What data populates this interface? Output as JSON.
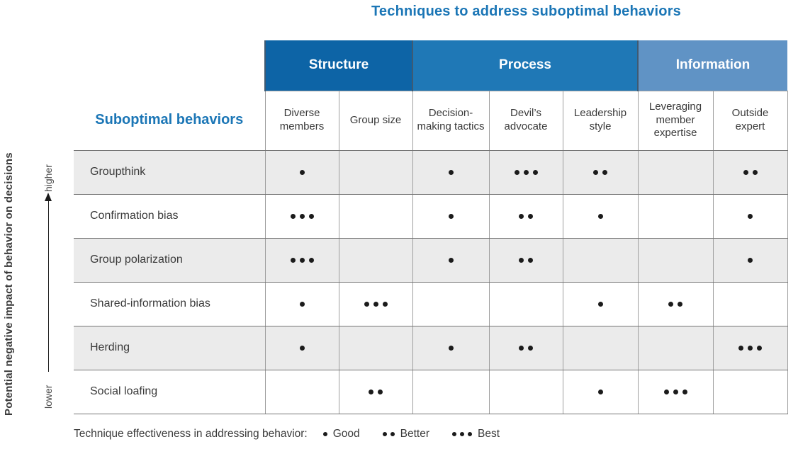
{
  "title": "Techniques to address suboptimal behaviors",
  "row_header": "Suboptimal behaviors",
  "y_axis": {
    "title": "Potential negative impact of behavior on decisions",
    "top_label": "higher",
    "bottom_label": "lower"
  },
  "groups": [
    {
      "label": "Structure",
      "span": 2,
      "color": "#0d64a6"
    },
    {
      "label": "Process",
      "span": 3,
      "color": "#1f78b6"
    },
    {
      "label": "Information",
      "span": 2,
      "color": "#6093c5"
    }
  ],
  "columns": [
    "Diverse members",
    "Group size",
    "Decision-making tactics",
    "Devil’s advocate",
    "Leadership style",
    "Leveraging member expertise",
    "Outside expert"
  ],
  "rows": [
    {
      "label": "Groupthink",
      "values": [
        1,
        0,
        1,
        3,
        2,
        0,
        2
      ]
    },
    {
      "label": "Confirmation bias",
      "values": [
        3,
        0,
        1,
        2,
        1,
        0,
        1
      ]
    },
    {
      "label": "Group polarization",
      "values": [
        3,
        0,
        1,
        2,
        0,
        0,
        1
      ]
    },
    {
      "label": "Shared-information bias",
      "values": [
        1,
        3,
        0,
        0,
        1,
        2,
        0
      ]
    },
    {
      "label": "Herding",
      "values": [
        1,
        0,
        1,
        2,
        0,
        0,
        3
      ]
    },
    {
      "label": "Social loafing",
      "values": [
        0,
        2,
        0,
        0,
        1,
        3,
        0
      ]
    }
  ],
  "legend": {
    "caption": "Technique effectiveness in addressing behavior:",
    "items": [
      {
        "dots": 1,
        "label": "Good"
      },
      {
        "dots": 2,
        "label": "Better"
      },
      {
        "dots": 3,
        "label": "Best"
      }
    ]
  },
  "colors": {
    "title_blue": "#1b76b6",
    "dot": "#1b1b1b",
    "stripe": "#ebebeb",
    "group_divider": "#3f5a72"
  },
  "chart_data": {
    "type": "table",
    "title": "Techniques to address suboptimal behaviors",
    "row_axis_label": "Potential negative impact of behavior on decisions (higher to lower)",
    "column_groups": {
      "Structure": [
        "Diverse members",
        "Group size"
      ],
      "Process": [
        "Decision-making tactics",
        "Devil's advocate",
        "Leadership style"
      ],
      "Information": [
        "Leveraging member expertise",
        "Outside expert"
      ]
    },
    "columns": [
      "Diverse members",
      "Group size",
      "Decision-making tactics",
      "Devil's advocate",
      "Leadership style",
      "Leveraging member expertise",
      "Outside expert"
    ],
    "rows": [
      "Groupthink",
      "Confirmation bias",
      "Group polarization",
      "Shared-information bias",
      "Herding",
      "Social loafing"
    ],
    "values": [
      [
        1,
        0,
        1,
        3,
        2,
        0,
        2
      ],
      [
        3,
        0,
        1,
        2,
        1,
        0,
        1
      ],
      [
        3,
        0,
        1,
        2,
        0,
        0,
        1
      ],
      [
        1,
        3,
        0,
        0,
        1,
        2,
        0
      ],
      [
        1,
        0,
        1,
        2,
        0,
        0,
        3
      ],
      [
        0,
        2,
        0,
        0,
        1,
        3,
        0
      ]
    ],
    "value_scale": {
      "0": "not applicable",
      "1": "Good",
      "2": "Better",
      "3": "Best"
    }
  }
}
